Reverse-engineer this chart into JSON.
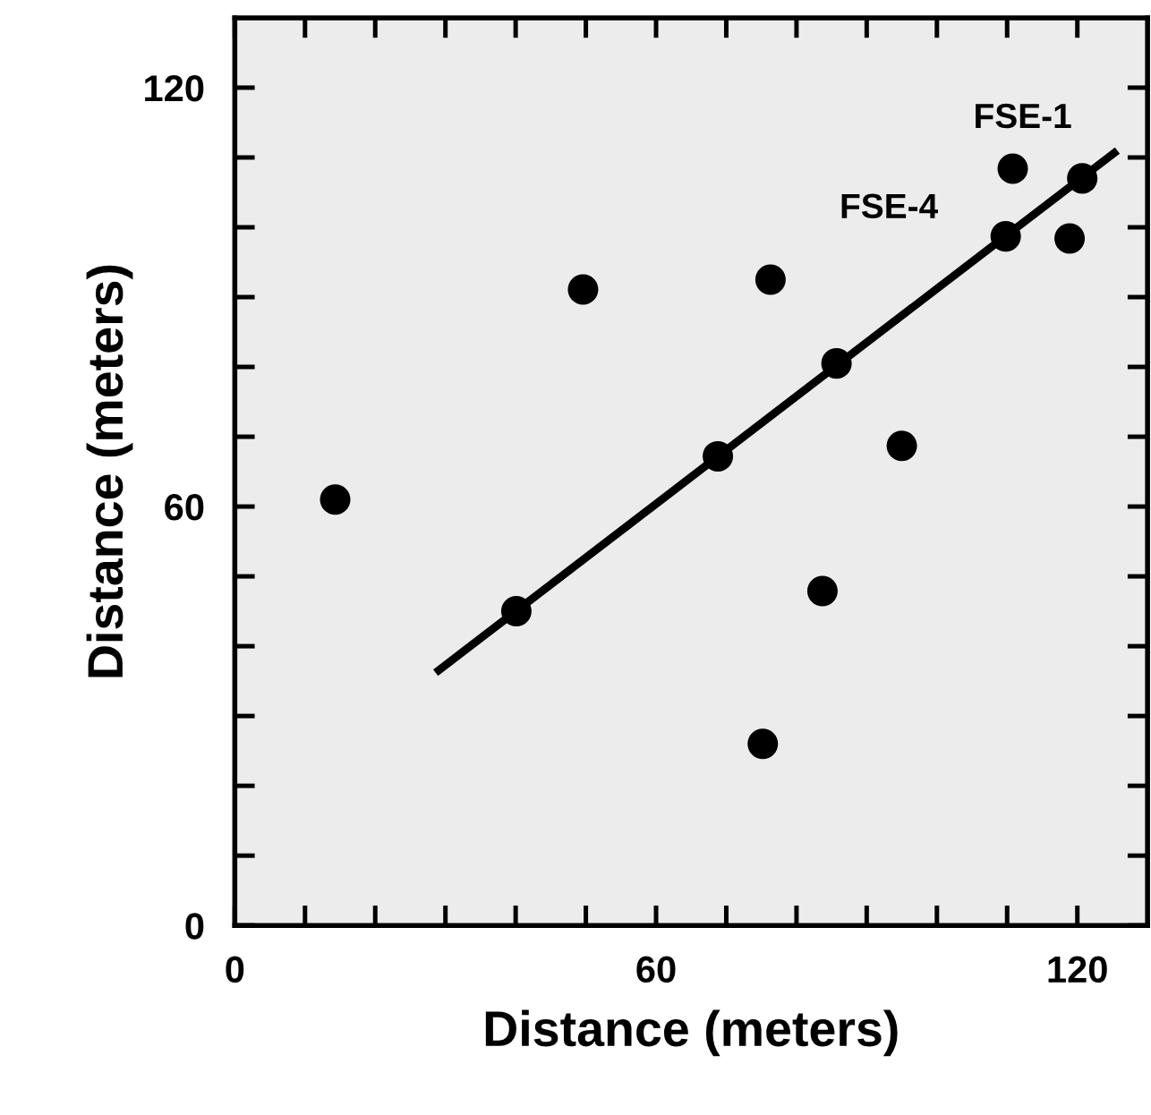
{
  "chart_data": {
    "type": "scatter",
    "xlabel": "Distance (meters)",
    "ylabel": "Distance (meters)",
    "xlim": [
      0,
      130
    ],
    "ylim": [
      0,
      130
    ],
    "xticks": [
      0,
      {
        "value": 10,
        "label": null
      },
      {
        "value": 20,
        "label": null
      },
      {
        "value": 30,
        "label": null
      },
      {
        "value": 40,
        "label": null
      },
      {
        "value": 50,
        "label": null
      },
      60,
      {
        "value": 70,
        "label": null
      },
      {
        "value": 80,
        "label": null
      },
      {
        "value": 90,
        "label": null
      },
      {
        "value": 100,
        "label": null
      },
      {
        "value": 110,
        "label": null
      },
      120
    ],
    "yticks": [
      0,
      {
        "value": 10,
        "label": null
      },
      {
        "value": 20,
        "label": null
      },
      {
        "value": 30,
        "label": null
      },
      {
        "value": 40,
        "label": null
      },
      {
        "value": 50,
        "label": null
      },
      60,
      {
        "value": 70,
        "label": null
      },
      {
        "value": 80,
        "label": null
      },
      {
        "value": 90,
        "label": null
      },
      {
        "value": 100,
        "label": null
      },
      {
        "value": 110,
        "label": null
      },
      120
    ],
    "grid": false,
    "marker": "circle",
    "series": [
      {
        "color": "#000000",
        "x": [
          14.3,
          49.6,
          76.3,
          40.1,
          68.8,
          85.7,
          95.0,
          83.7,
          75.2,
          109.8,
          110.8,
          120.7,
          118.9
        ],
        "values": [
          61.0,
          91.1,
          92.5,
          45.0,
          67.2,
          80.5,
          68.7,
          47.9,
          26.0,
          98.7,
          108.4,
          107.0,
          98.4
        ]
      },
      {
        "type": "line",
        "color": "#000000",
        "marker": "none",
        "line_style": "solid",
        "x": [
          28.6,
          125.7
        ],
        "values": [
          36.2,
          111.0
        ]
      }
    ],
    "annotations": [
      {
        "text": "FSE-1",
        "x": 110.8,
        "y": 108.4
      },
      {
        "text": "FSE-4",
        "x": 109.8,
        "y": 98.7
      }
    ]
  }
}
